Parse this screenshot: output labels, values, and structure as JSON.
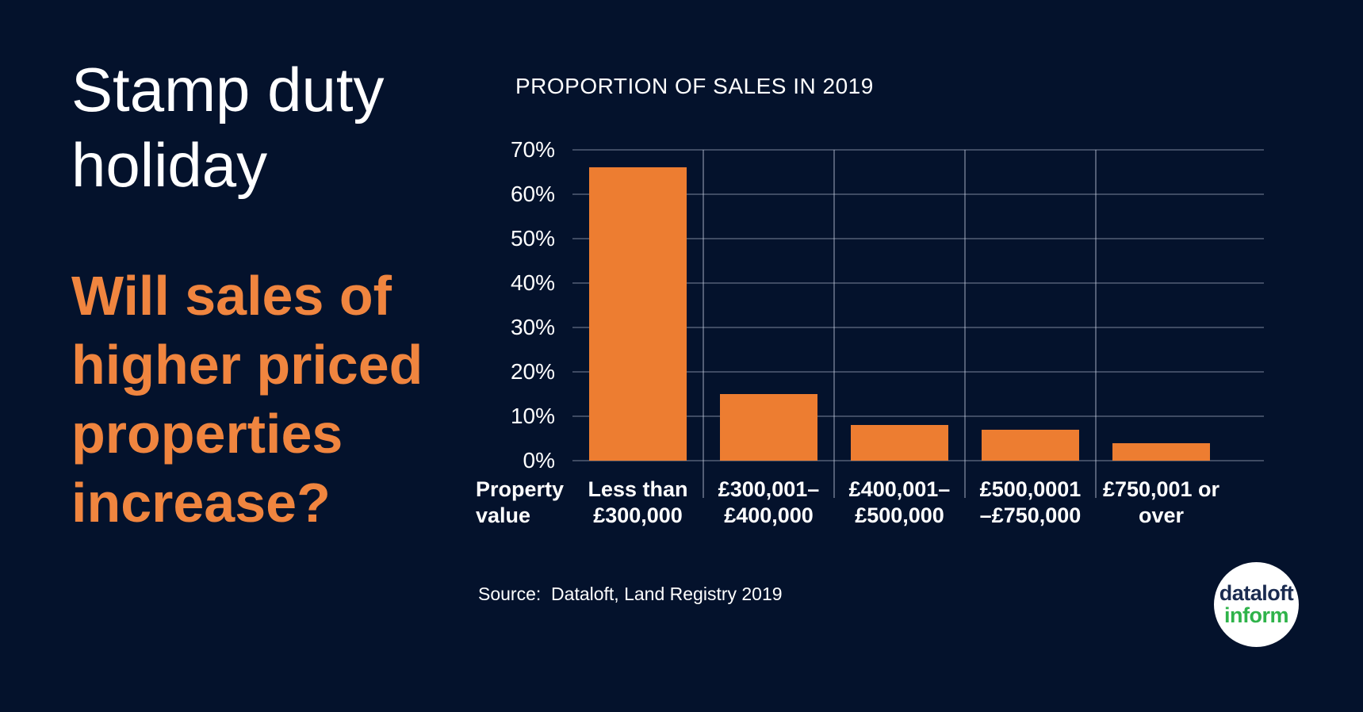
{
  "page": {
    "background": "#04122c",
    "text_color": "#ffffff"
  },
  "left_panel": {
    "title_lines": [
      "Stamp duty",
      "holiday"
    ],
    "title_color": "#ffffff",
    "headline_lines": [
      "Will sales of",
      "higher priced",
      "properties",
      "increase?"
    ],
    "headline_color": "#f0853f"
  },
  "chart": {
    "source": "Source:  Dataloft, Land Registry 2019"
  },
  "chart_data": {
    "type": "bar",
    "title": "PROPORTION OF SALES IN 2019",
    "categories": [
      "Less than £300,000",
      "£300,001–£400,000",
      "£400,001–£500,000",
      "£500,0001–£750,000",
      "£750,001 or over"
    ],
    "category_label_lines": [
      [
        "Less than",
        "£300,000"
      ],
      [
        "£300,001–",
        "£400,000"
      ],
      [
        "£400,001–",
        "£500,000"
      ],
      [
        "£500,0001",
        "–£750,000"
      ],
      [
        "£750,001 or",
        "over"
      ]
    ],
    "values": [
      66,
      15,
      8,
      7,
      4
    ],
    "unit": "%",
    "xlabel": "Property value",
    "xlabel_lines": [
      "Property",
      "value"
    ],
    "ylabel": "",
    "ylim": [
      0,
      70
    ],
    "yticks": [
      0,
      10,
      20,
      30,
      40,
      50,
      60,
      70
    ],
    "ytick_suffix": "%",
    "grid": true,
    "legend": "none",
    "bar_color": "#ed7d31",
    "grid_color": "rgba(202,210,228,0.30)"
  },
  "logo": {
    "line1": "dataloft",
    "line2": "inform",
    "line1_color": "#1a2b50",
    "line2_color": "#2fb34a",
    "background": "#ffffff"
  }
}
